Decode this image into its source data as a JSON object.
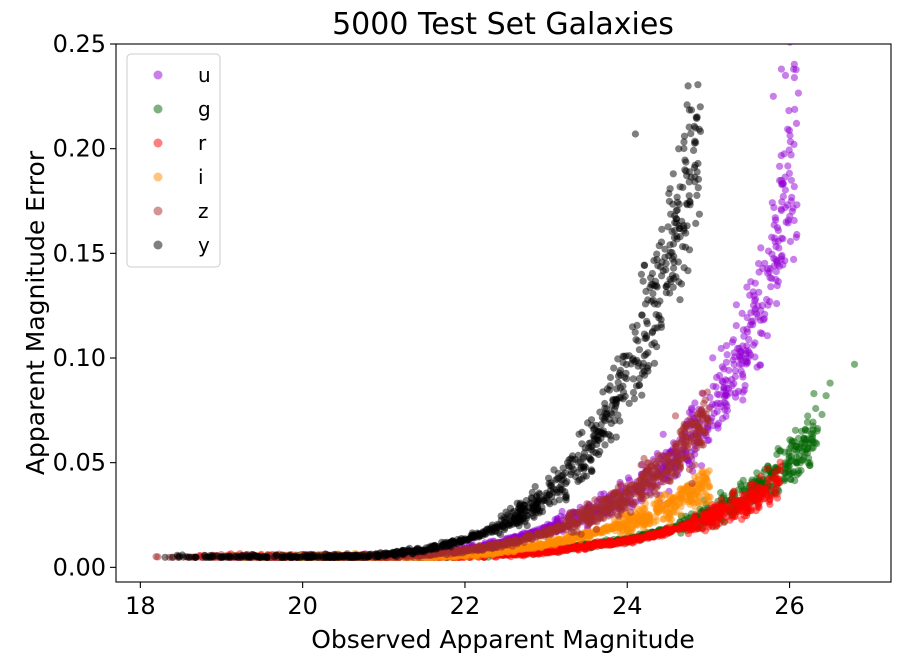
{
  "chart_data": {
    "type": "scatter",
    "title": "5000 Test Set Galaxies",
    "xlabel": "Observed Apparent Magnitude",
    "ylabel": "Apparent Magnitude Error",
    "xlim": [
      17.7,
      27.25
    ],
    "ylim": [
      -0.007,
      0.25
    ],
    "xticks": [
      18,
      20,
      22,
      24,
      26
    ],
    "xtick_labels": [
      "18",
      "20",
      "22",
      "24",
      "26"
    ],
    "yticks": [
      0.0,
      0.05,
      0.1,
      0.15,
      0.2,
      0.25
    ],
    "ytick_labels": [
      "0.00",
      "0.05",
      "0.10",
      "0.15",
      "0.20",
      "0.25"
    ],
    "grid": false,
    "legend_position": "top-left",
    "marker_alpha": 0.5,
    "series": [
      {
        "name": "u",
        "color": "#9400d3",
        "points": [
          [
            19.0,
            0.005
          ],
          [
            20.0,
            0.005
          ],
          [
            21.0,
            0.0052
          ],
          [
            21.5,
            0.006
          ],
          [
            22.0,
            0.0085
          ],
          [
            22.5,
            0.0125
          ],
          [
            23.0,
            0.0185
          ],
          [
            23.5,
            0.026
          ],
          [
            24.0,
            0.035
          ],
          [
            24.5,
            0.049
          ],
          [
            24.75,
            0.06
          ],
          [
            25.0,
            0.073
          ],
          [
            25.25,
            0.09
          ],
          [
            25.5,
            0.11
          ],
          [
            25.75,
            0.14
          ],
          [
            26.0,
            0.18
          ],
          [
            26.1,
            0.22
          ]
        ],
        "extremes": [
          [
            25.9,
            0.238
          ],
          [
            26.05,
            0.238
          ],
          [
            25.95,
            0.235
          ],
          [
            25.8,
            0.225
          ]
        ]
      },
      {
        "name": "g",
        "color": "#006400",
        "points": [
          [
            19.0,
            0.005
          ],
          [
            20.5,
            0.005
          ],
          [
            21.5,
            0.005
          ],
          [
            22.0,
            0.0055
          ],
          [
            23.0,
            0.008
          ],
          [
            24.0,
            0.013
          ],
          [
            24.5,
            0.018
          ],
          [
            25.0,
            0.025
          ],
          [
            25.5,
            0.035
          ],
          [
            25.75,
            0.042
          ],
          [
            26.0,
            0.05
          ],
          [
            26.25,
            0.06
          ],
          [
            26.35,
            0.066
          ]
        ],
        "extremes": [
          [
            26.8,
            0.097
          ],
          [
            26.5,
            0.088
          ],
          [
            26.45,
            0.082
          ],
          [
            26.3,
            0.083
          ],
          [
            26.4,
            0.073
          ]
        ]
      },
      {
        "name": "r",
        "color": "#ff0000",
        "points": [
          [
            18.5,
            0.005
          ],
          [
            20.0,
            0.005
          ],
          [
            21.5,
            0.005
          ],
          [
            22.0,
            0.0052
          ],
          [
            23.0,
            0.0075
          ],
          [
            24.0,
            0.0125
          ],
          [
            24.5,
            0.017
          ],
          [
            25.0,
            0.023
          ],
          [
            25.5,
            0.032
          ],
          [
            25.75,
            0.038
          ],
          [
            25.9,
            0.044
          ]
        ],
        "extremes": []
      },
      {
        "name": "i",
        "color": "#ff8c00",
        "points": [
          [
            19.0,
            0.005
          ],
          [
            20.5,
            0.005
          ],
          [
            21.5,
            0.005
          ],
          [
            22.0,
            0.006
          ],
          [
            22.5,
            0.008
          ],
          [
            23.0,
            0.011
          ],
          [
            23.5,
            0.0155
          ],
          [
            24.0,
            0.021
          ],
          [
            24.5,
            0.029
          ],
          [
            24.8,
            0.035
          ],
          [
            25.0,
            0.04
          ]
        ],
        "extremes": []
      },
      {
        "name": "z",
        "color": "#a52a2a",
        "points": [
          [
            18.2,
            0.005
          ],
          [
            19.5,
            0.005
          ],
          [
            20.5,
            0.005
          ],
          [
            21.0,
            0.0052
          ],
          [
            21.5,
            0.006
          ],
          [
            22.0,
            0.008
          ],
          [
            22.5,
            0.011
          ],
          [
            23.0,
            0.0165
          ],
          [
            23.5,
            0.024
          ],
          [
            24.0,
            0.034
          ],
          [
            24.5,
            0.049
          ],
          [
            24.8,
            0.062
          ],
          [
            25.0,
            0.072
          ]
        ],
        "extremes": []
      },
      {
        "name": "y",
        "color": "#000000",
        "points": [
          [
            18.2,
            0.005
          ],
          [
            19.0,
            0.005
          ],
          [
            20.0,
            0.005
          ],
          [
            20.5,
            0.0052
          ],
          [
            21.0,
            0.006
          ],
          [
            21.5,
            0.0085
          ],
          [
            22.0,
            0.013
          ],
          [
            22.5,
            0.021
          ],
          [
            23.0,
            0.033
          ],
          [
            23.5,
            0.055
          ],
          [
            23.75,
            0.071
          ],
          [
            24.0,
            0.092
          ],
          [
            24.25,
            0.116
          ],
          [
            24.5,
            0.145
          ],
          [
            24.7,
            0.175
          ],
          [
            24.9,
            0.21
          ]
        ],
        "extremes": [
          [
            24.75,
            0.23
          ],
          [
            24.9,
            0.22
          ],
          [
            24.1,
            0.207
          ],
          [
            24.85,
            0.215
          ]
        ]
      }
    ]
  }
}
